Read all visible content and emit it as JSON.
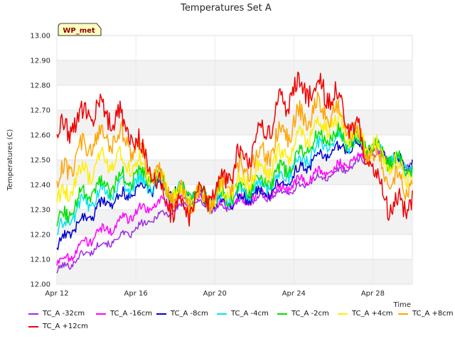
{
  "chart_data": {
    "type": "line",
    "title": "Temperatures Set A",
    "xlabel": "Time",
    "ylabel": "Temperatures (C)",
    "ylim": [
      12.0,
      13.0
    ],
    "xlim": [
      "2024-04-12",
      "2024-04-30"
    ],
    "yticks": [
      "12.00",
      "12.10",
      "12.20",
      "12.30",
      "12.40",
      "12.50",
      "12.60",
      "12.70",
      "12.80",
      "12.90",
      "13.00"
    ],
    "xticks": [
      {
        "date": "2024-04-12",
        "label": "Apr 12"
      },
      {
        "date": "2024-04-16",
        "label": "Apr 16"
      },
      {
        "date": "2024-04-20",
        "label": "Apr 20"
      },
      {
        "date": "2024-04-24",
        "label": "Apr 24"
      },
      {
        "date": "2024-04-28",
        "label": "Apr 28"
      }
    ],
    "grid": true,
    "legend_position": "bottom",
    "annotation": "WP_met",
    "x": [
      "2024-04-12",
      "2024-04-13",
      "2024-04-14",
      "2024-04-15",
      "2024-04-16",
      "2024-04-17",
      "2024-04-18",
      "2024-04-19",
      "2024-04-20",
      "2024-04-21",
      "2024-04-22",
      "2024-04-23",
      "2024-04-24",
      "2024-04-25",
      "2024-04-26",
      "2024-04-27",
      "2024-04-28",
      "2024-04-29",
      "2024-04-30"
    ],
    "series": [
      {
        "name": "TC_A -32cm",
        "color": "#9b30e0",
        "values": [
          12.05,
          12.1,
          12.15,
          12.18,
          12.22,
          12.27,
          12.3,
          12.33,
          12.3,
          12.32,
          12.34,
          12.36,
          12.38,
          12.42,
          12.44,
          12.48,
          12.52,
          12.5,
          12.48
        ]
      },
      {
        "name": "TC_A -16cm",
        "color": "#ff00ff",
        "values": [
          12.08,
          12.14,
          12.2,
          12.24,
          12.29,
          12.32,
          12.34,
          12.35,
          12.31,
          12.33,
          12.35,
          12.37,
          12.4,
          12.44,
          12.46,
          12.5,
          12.53,
          12.5,
          12.47
        ]
      },
      {
        "name": "TC_A -8cm",
        "color": "#0000d0",
        "values": [
          12.15,
          12.24,
          12.3,
          12.34,
          12.38,
          12.39,
          12.37,
          12.36,
          12.31,
          12.34,
          12.36,
          12.38,
          12.44,
          12.5,
          12.53,
          12.56,
          12.55,
          12.5,
          12.48
        ]
      },
      {
        "name": "TC_A -4cm",
        "color": "#00e5ee",
        "values": [
          12.2,
          12.3,
          12.35,
          12.38,
          12.41,
          12.4,
          12.37,
          12.36,
          12.33,
          12.36,
          12.38,
          12.41,
          12.47,
          12.54,
          12.57,
          12.57,
          12.55,
          12.5,
          12.47
        ]
      },
      {
        "name": "TC_A -2cm",
        "color": "#00e000",
        "values": [
          12.23,
          12.33,
          12.38,
          12.41,
          12.44,
          12.42,
          12.37,
          12.36,
          12.35,
          12.37,
          12.4,
          12.43,
          12.5,
          12.57,
          12.6,
          12.58,
          12.55,
          12.5,
          12.46
        ]
      },
      {
        "name": "TC_A +4cm",
        "color": "#ffee00",
        "values": [
          12.32,
          12.42,
          12.48,
          12.5,
          12.48,
          12.43,
          12.36,
          12.35,
          12.34,
          12.4,
          12.44,
          12.48,
          12.56,
          12.63,
          12.65,
          12.6,
          12.55,
          12.48,
          12.44
        ]
      },
      {
        "name": "TC_A +8cm",
        "color": "#ffa500",
        "values": [
          12.4,
          12.52,
          12.58,
          12.6,
          12.55,
          12.44,
          12.35,
          12.34,
          12.35,
          12.44,
          12.5,
          12.56,
          12.65,
          12.7,
          12.7,
          12.62,
          12.52,
          12.42,
          12.4
        ]
      },
      {
        "name": "TC_A +12cm",
        "color": "#ee0000",
        "values": [
          12.58,
          12.66,
          12.7,
          12.68,
          12.58,
          12.42,
          12.3,
          12.32,
          12.38,
          12.48,
          12.56,
          12.68,
          12.78,
          12.8,
          12.76,
          12.64,
          12.46,
          12.3,
          12.34
        ]
      }
    ]
  }
}
